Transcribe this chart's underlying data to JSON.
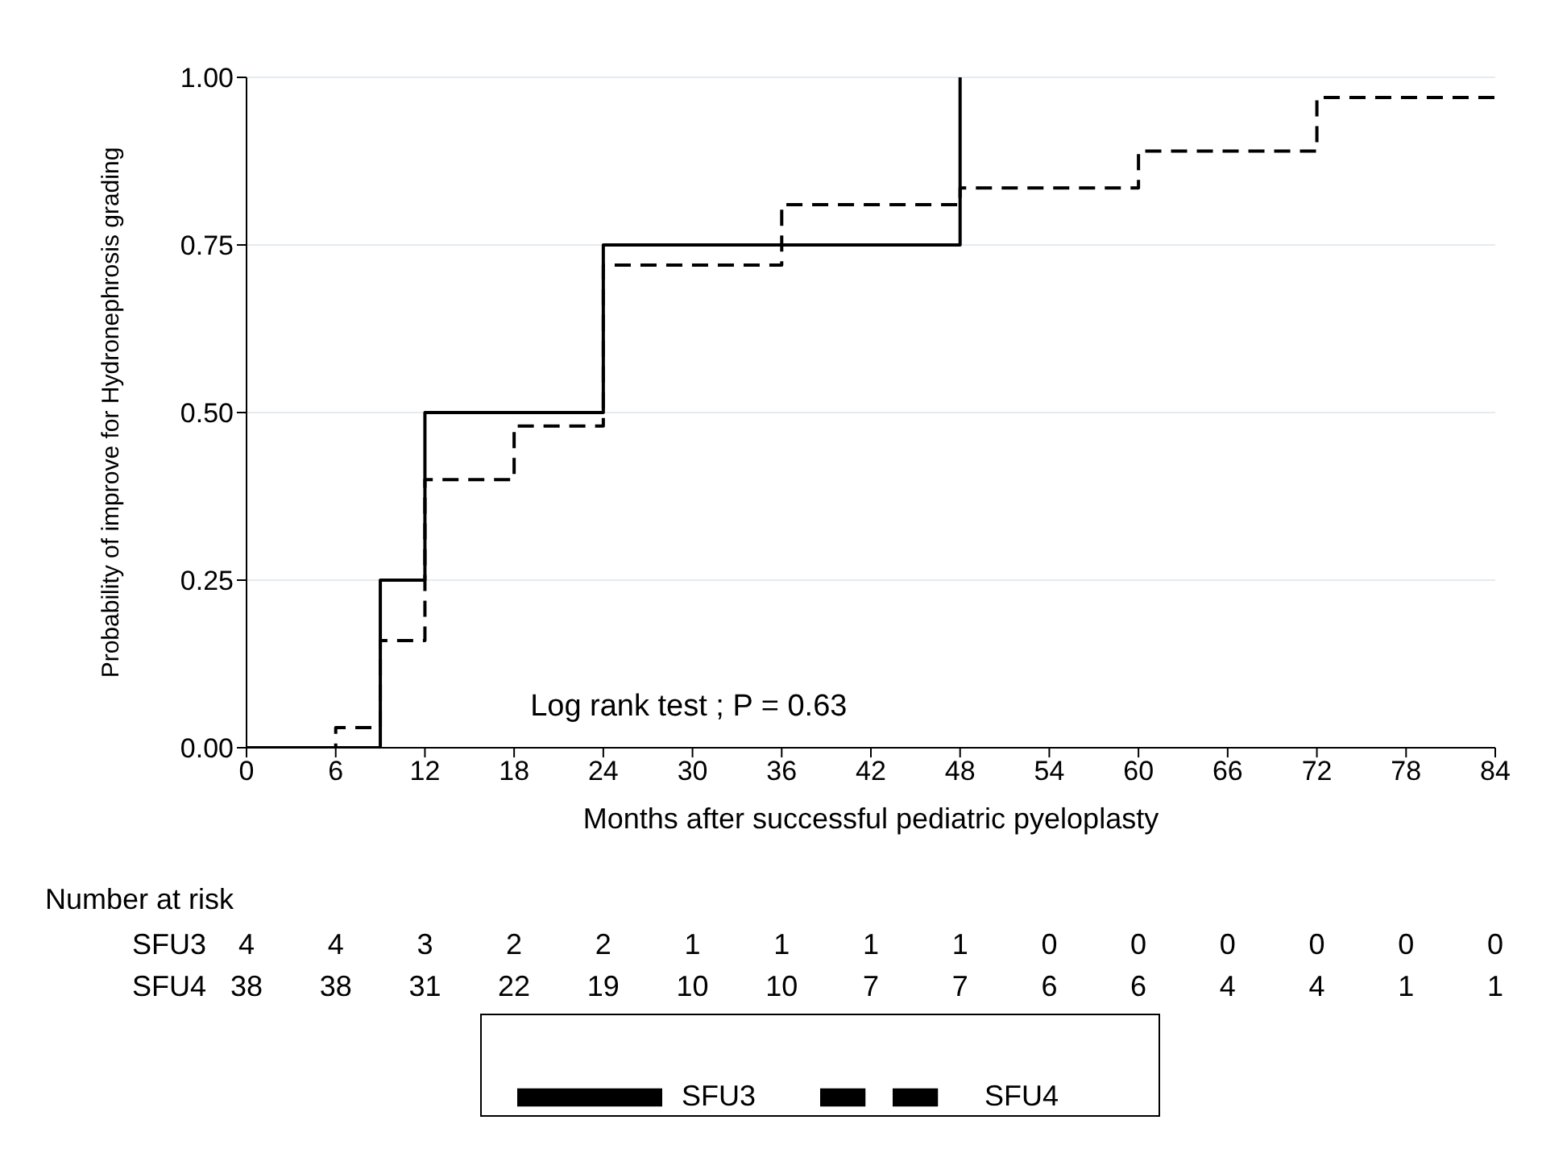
{
  "chart_data": {
    "type": "step",
    "xlabel": "Months after successful pediatric pyeloplasty",
    "ylabel": "Probability of improve for Hydronephrosis grading",
    "xlim": [
      0,
      84
    ],
    "xticks": [
      0,
      6,
      12,
      18,
      24,
      30,
      36,
      42,
      48,
      54,
      60,
      66,
      72,
      78,
      84
    ],
    "ylim": [
      0,
      1
    ],
    "yticks": [
      {
        "value": 0,
        "label": "0.00"
      },
      {
        "value": 0.25,
        "label": "0.25"
      },
      {
        "value": 0.5,
        "label": "0.50"
      },
      {
        "value": 0.75,
        "label": "0.75"
      },
      {
        "value": 1,
        "label": "1.00"
      }
    ],
    "grid": "y",
    "legend": "bottom",
    "marker": "none",
    "series": [
      {
        "name": "SFU3",
        "color": "#000000",
        "line_style": "solid",
        "x": [
          0,
          9,
          12,
          24,
          48
        ],
        "values": [
          0,
          0.25,
          0.5,
          0.75,
          1
        ]
      },
      {
        "name": "SFU4",
        "color": "#000000",
        "line_style": "dashed",
        "x": [
          0,
          6,
          9,
          12,
          18,
          24,
          36,
          48,
          60,
          72,
          84
        ],
        "values": [
          0,
          0.03,
          0.16,
          0.4,
          0.48,
          0.72,
          0.81,
          0.835,
          0.89,
          0.97,
          0.97
        ]
      }
    ],
    "annotations": [
      "Log rank test ; P = 0.63",
      "Number at risk",
      "SFU3",
      "4 4 3 2 2 1 1 1 1 0 0 0 0 0 0",
      "SFU4",
      "38 38 31 22 19 10 10 7 7 6 6 4 4 1 1"
    ]
  }
}
